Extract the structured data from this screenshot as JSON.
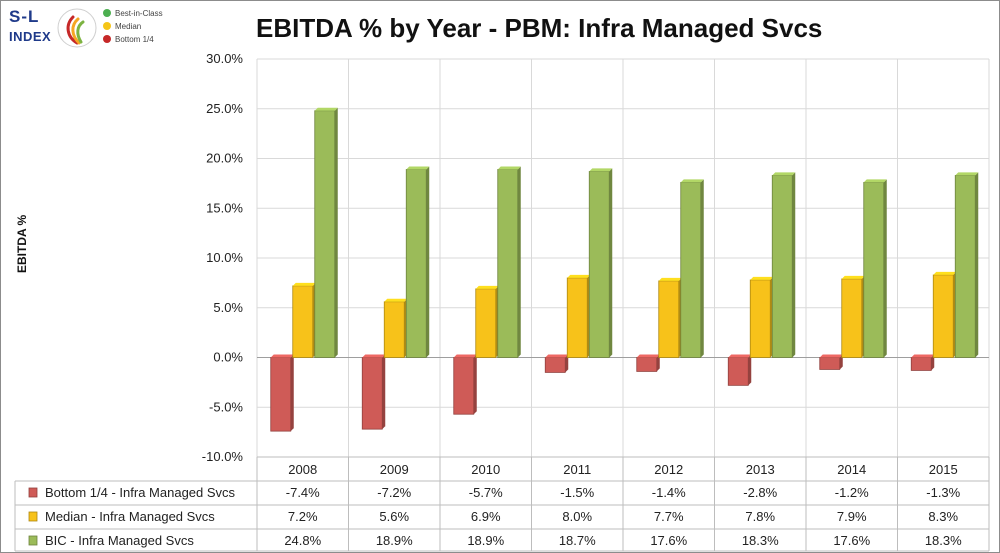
{
  "logo": {
    "brand_top": "S-L",
    "brand_bottom": "INDEX",
    "legend": [
      {
        "label": "Best-in-Class",
        "color": "#4caf50"
      },
      {
        "label": "Median",
        "color": "#f5c518"
      },
      {
        "label": "Bottom 1/4",
        "color": "#c62828"
      }
    ]
  },
  "chart_data": {
    "type": "bar",
    "title": "EBITDA % by Year - PBM: Infra Managed Svcs",
    "xlabel": "",
    "ylabel": "EBITDA %",
    "ylim": [
      -10,
      30
    ],
    "yticks": [
      "30.0%",
      "25.0%",
      "20.0%",
      "15.0%",
      "10.0%",
      "5.0%",
      "0.0%",
      "-5.0%",
      "-10.0%"
    ],
    "categories": [
      "2008",
      "2009",
      "2010",
      "2011",
      "2012",
      "2013",
      "2014",
      "2015"
    ],
    "grid": true,
    "legend_placement": "data-table",
    "series": [
      {
        "name": "Bottom 1/4 - Infra Managed Svcs",
        "color": "#cf5b57",
        "values": [
          -7.4,
          -7.2,
          -5.7,
          -1.5,
          -1.4,
          -2.8,
          -1.2,
          -1.3
        ],
        "labels": [
          "-7.4%",
          "-7.2%",
          "-5.7%",
          "-1.5%",
          "-1.4%",
          "-2.8%",
          "-1.2%",
          "-1.3%"
        ]
      },
      {
        "name": "Median - Infra Managed Svcs",
        "color": "#f7c21a",
        "values": [
          7.2,
          5.6,
          6.9,
          8.0,
          7.7,
          7.8,
          7.9,
          8.3
        ],
        "labels": [
          "7.2%",
          "5.6%",
          "6.9%",
          "8.0%",
          "7.7%",
          "7.8%",
          "7.9%",
          "8.3%"
        ]
      },
      {
        "name": "BIC - Infra Managed Svcs",
        "color": "#9bbb59",
        "values": [
          24.8,
          18.9,
          18.9,
          18.7,
          17.6,
          18.3,
          17.6,
          18.3
        ],
        "labels": [
          "24.8%",
          "18.9%",
          "18.9%",
          "18.7%",
          "17.6%",
          "18.3%",
          "17.6%",
          "18.3%"
        ]
      }
    ]
  }
}
